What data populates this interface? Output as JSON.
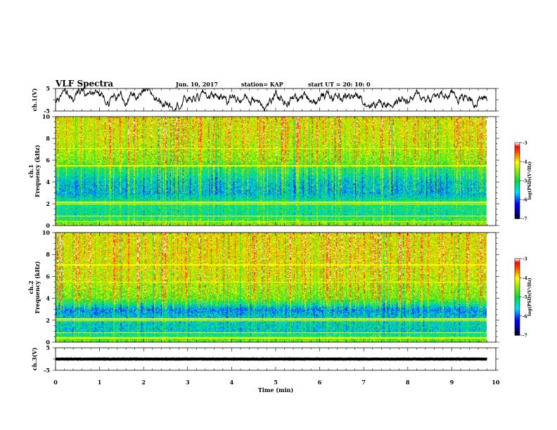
{
  "header": {
    "title": "VLF Spectra",
    "date": "Jun. 10, 2017",
    "station": "station= KAP",
    "start": "start  UT =   20: 10: 0"
  },
  "chart_data": [
    {
      "type": "line",
      "name": "ch1-waveform",
      "ylabel": "ch.1(V)",
      "xlim": [
        0,
        10
      ],
      "ylim": [
        -5,
        5
      ],
      "yticks": [
        "5",
        "-5"
      ],
      "mean": 0.9,
      "spread": 1.6,
      "x_end": 9.8,
      "color": "#000000"
    },
    {
      "type": "heatmap",
      "name": "ch1-spectrogram",
      "ylabel": "ch.1 Frequency (kHz)",
      "xlim": [
        0,
        10
      ],
      "ylim": [
        0,
        10
      ],
      "yticks": [
        "0",
        "2",
        "4",
        "6",
        "8",
        "10"
      ],
      "x_end": 9.8,
      "colorbar": {
        "label": "log(PSD)(V²/Hz)",
        "range": [
          -7,
          -3
        ],
        "ticks": [
          "-3",
          "-4",
          "-5",
          "-6",
          "-7"
        ]
      },
      "log_psd_profile": [
        {
          "kHz": 0.0,
          "value": -4.4
        },
        {
          "kHz": 1.0,
          "value": -5.3
        },
        {
          "kHz": 2.0,
          "value": -5.1
        },
        {
          "kHz": 3.0,
          "value": -5.6
        },
        {
          "kHz": 4.0,
          "value": -5.5
        },
        {
          "kHz": 5.0,
          "value": -5.1
        },
        {
          "kHz": 6.0,
          "value": -4.5
        },
        {
          "kHz": 8.0,
          "value": -4.2
        },
        {
          "kHz": 10.0,
          "value": -4.1
        }
      ]
    },
    {
      "type": "heatmap",
      "name": "ch2-spectrogram",
      "ylabel": "ch.2 Frequency (kHz)",
      "xlim": [
        0,
        10
      ],
      "ylim": [
        0,
        10
      ],
      "yticks": [
        "0",
        "2",
        "4",
        "6",
        "8",
        "10"
      ],
      "x_end": 9.8,
      "colorbar": {
        "label": "log(PSD)(V²/Hz)",
        "range": [
          -7,
          -3
        ],
        "ticks": [
          "-3",
          "-4",
          "-5",
          "-6",
          "-7"
        ]
      },
      "log_psd_profile": [
        {
          "kHz": 0.0,
          "value": -4.5
        },
        {
          "kHz": 1.0,
          "value": -5.5
        },
        {
          "kHz": 2.0,
          "value": -5.4
        },
        {
          "kHz": 3.0,
          "value": -5.8
        },
        {
          "kHz": 4.0,
          "value": -4.6
        },
        {
          "kHz": 6.0,
          "value": -4.2
        },
        {
          "kHz": 8.0,
          "value": -4.1
        },
        {
          "kHz": 10.0,
          "value": -4.1
        }
      ]
    },
    {
      "type": "line",
      "name": "ch3-waveform",
      "ylabel": "ch.3(V)",
      "xlim": [
        0,
        10
      ],
      "ylim": [
        -5,
        5
      ],
      "yticks": [
        "5",
        "-5"
      ],
      "mean": 0.0,
      "spread": 0.15,
      "x_end": 9.8,
      "color": "#000000"
    }
  ],
  "xaxis": {
    "label": "Time (min)",
    "ticks": [
      "0",
      "1",
      "2",
      "3",
      "4",
      "5",
      "6",
      "7",
      "8",
      "9",
      "10"
    ]
  }
}
